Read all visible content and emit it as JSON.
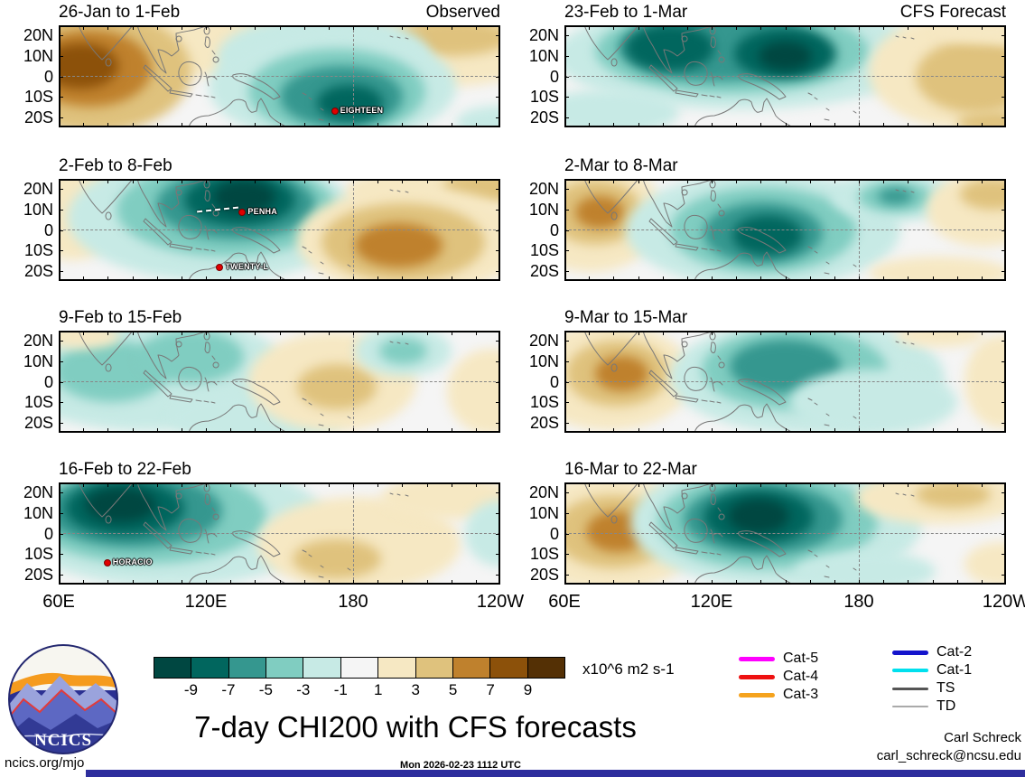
{
  "figure": {
    "title": "7-day CHI200 with CFS forecasts"
  },
  "footer": {
    "site": "ncics.org/mjo",
    "timestamp": "Mon 2026-02-23 1112 UTC",
    "credit_name": "Carl Schreck",
    "credit_email": "carl_schreck@ncsu.edu"
  },
  "logo": {
    "text": "NCICS"
  },
  "axes": {
    "lat_tick_labels": [
      "20N",
      "10N",
      "0",
      "10S",
      "20S"
    ],
    "lon_tick_labels": [
      "60E",
      "120E",
      "180",
      "120W"
    ]
  },
  "colorbar": {
    "units": "x10^6 m2 s-1",
    "tick_labels": [
      "-9",
      "-7",
      "-5",
      "-3",
      "-1",
      "1",
      "3",
      "5",
      "7",
      "9"
    ],
    "colors": [
      "#004741",
      "#01665e",
      "#35978f",
      "#80cdc1",
      "#c7eae5",
      "#f5f5f5",
      "#f6e8c3",
      "#dfc27d",
      "#bf812d",
      "#8c510a",
      "#543005"
    ]
  },
  "storm_legend": {
    "column1": [
      {
        "label": "Cat-5",
        "color": "#ff00ff",
        "thickness": 5
      },
      {
        "label": "Cat-4",
        "color": "#ee1111",
        "thickness": 5
      },
      {
        "label": "Cat-3",
        "color": "#f5a31e",
        "thickness": 5
      }
    ],
    "column2": [
      {
        "label": "Cat-2",
        "color": "#1414cc",
        "thickness": 5
      },
      {
        "label": "Cat-1",
        "color": "#00e0ee",
        "thickness": 4
      },
      {
        "label": "TS",
        "color": "#555555",
        "thickness": 3
      },
      {
        "label": "TD",
        "color": "#aaaaaa",
        "thickness": 2
      }
    ]
  },
  "chart_data": {
    "type": "heatmap",
    "subtype": "filled_contour_map_panels",
    "variable": "7-day CHI200 (200 hPa velocity potential) anomaly",
    "units": "x10^6 m2 s-1",
    "contour_levels": [
      -9,
      -7,
      -5,
      -3,
      -1,
      1,
      3,
      5,
      7,
      9
    ],
    "lon_range_deg_east": [
      60,
      240
    ],
    "lat_range_deg_north": [
      -25,
      25
    ],
    "grid_lines": {
      "lat": [
        0
      ],
      "lon": [
        180
      ]
    },
    "panels": [
      {
        "title": "26-Jan to 1-Feb",
        "corner_label": "Observed",
        "column": "observed",
        "row": 0,
        "anomalies": [
          {
            "x": 0.3,
            "y": 0.15,
            "rx": 0.28,
            "ry": 0.35,
            "value": 2
          },
          {
            "x": 0.08,
            "y": 0.45,
            "rx": 0.22,
            "ry": 0.6,
            "value": 4
          },
          {
            "x": 0.07,
            "y": 0.42,
            "rx": 0.14,
            "ry": 0.38,
            "value": 6
          },
          {
            "x": 0.05,
            "y": 0.4,
            "rx": 0.085,
            "ry": 0.22,
            "value": 8
          },
          {
            "x": 0.88,
            "y": 0.22,
            "rx": 0.22,
            "ry": 0.38,
            "value": 2
          },
          {
            "x": 0.89,
            "y": 0.12,
            "rx": 0.13,
            "ry": 0.18,
            "value": 4
          },
          {
            "x": 0.6,
            "y": 0.3,
            "rx": 0.24,
            "ry": 0.4,
            "value": -2
          },
          {
            "x": 0.62,
            "y": 0.6,
            "rx": 0.28,
            "ry": 0.55,
            "value": -2
          },
          {
            "x": 0.63,
            "y": 0.65,
            "rx": 0.2,
            "ry": 0.42,
            "value": -4
          },
          {
            "x": 0.64,
            "y": 0.7,
            "rx": 0.14,
            "ry": 0.3,
            "value": -6
          },
          {
            "x": 0.66,
            "y": 0.76,
            "rx": 0.075,
            "ry": 0.18,
            "value": -8
          },
          {
            "x": 1.0,
            "y": 0.95,
            "rx": 0.1,
            "ry": 0.16,
            "value": -2
          }
        ],
        "storms": [
          {
            "name": "EIGHTEEN",
            "x": 0.625,
            "y": 0.84
          }
        ]
      },
      {
        "title": "2-Feb to 8-Feb",
        "column": "observed",
        "row": 1,
        "anomalies": [
          {
            "x": 0.03,
            "y": 0.3,
            "rx": 0.12,
            "ry": 0.5,
            "value": 2
          },
          {
            "x": 0.35,
            "y": 0.38,
            "rx": 0.33,
            "ry": 0.62,
            "value": -2
          },
          {
            "x": 0.38,
            "y": 0.3,
            "rx": 0.25,
            "ry": 0.46,
            "value": -4
          },
          {
            "x": 0.4,
            "y": 0.25,
            "rx": 0.18,
            "ry": 0.34,
            "value": -6
          },
          {
            "x": 0.41,
            "y": 0.21,
            "rx": 0.125,
            "ry": 0.25,
            "value": -8
          },
          {
            "x": 0.42,
            "y": 0.18,
            "rx": 0.07,
            "ry": 0.16,
            "value": -10
          },
          {
            "x": 0.85,
            "y": 0.12,
            "rx": 0.2,
            "ry": 0.25,
            "value": 2
          },
          {
            "x": 0.97,
            "y": 0.08,
            "rx": 0.1,
            "ry": 0.15,
            "value": 4
          },
          {
            "x": 0.8,
            "y": 0.6,
            "rx": 0.26,
            "ry": 0.52,
            "value": 2
          },
          {
            "x": 0.78,
            "y": 0.62,
            "rx": 0.185,
            "ry": 0.38,
            "value": 4
          },
          {
            "x": 0.77,
            "y": 0.65,
            "rx": 0.1,
            "ry": 0.22,
            "value": 6
          }
        ],
        "storms": [
          {
            "name": "PENHA",
            "x": 0.416,
            "y": 0.33,
            "track": true
          },
          {
            "name": "TWENTY-L",
            "x": 0.365,
            "y": 0.87
          }
        ]
      },
      {
        "title": "9-Feb to 15-Feb",
        "column": "observed",
        "row": 2,
        "anomalies": [
          {
            "x": 0.2,
            "y": 0.4,
            "rx": 0.32,
            "ry": 0.58,
            "value": -2
          },
          {
            "x": 0.12,
            "y": 0.4,
            "rx": 0.13,
            "ry": 0.3,
            "value": -4
          },
          {
            "x": 0.3,
            "y": 0.25,
            "rx": 0.12,
            "ry": 0.26,
            "value": -4
          },
          {
            "x": 0.45,
            "y": 0.85,
            "rx": 0.2,
            "ry": 0.26,
            "value": -2
          },
          {
            "x": 0.62,
            "y": 0.5,
            "rx": 0.19,
            "ry": 0.48,
            "value": 2
          },
          {
            "x": 0.63,
            "y": 0.55,
            "rx": 0.09,
            "ry": 0.22,
            "value": 4
          },
          {
            "x": 0.78,
            "y": 0.2,
            "rx": 0.11,
            "ry": 0.24,
            "value": -2
          },
          {
            "x": 0.78,
            "y": 0.2,
            "rx": 0.055,
            "ry": 0.13,
            "value": -4
          },
          {
            "x": 0.98,
            "y": 0.6,
            "rx": 0.1,
            "ry": 0.42,
            "value": 2
          },
          {
            "x": 0.05,
            "y": 0.06,
            "rx": 0.09,
            "ry": 0.12,
            "value": 2
          }
        ],
        "storms": []
      },
      {
        "title": "16-Feb to 22-Feb",
        "column": "observed",
        "row": 3,
        "anomalies": [
          {
            "x": 0.25,
            "y": 0.4,
            "rx": 0.36,
            "ry": 0.62,
            "value": -2
          },
          {
            "x": 0.2,
            "y": 0.33,
            "rx": 0.27,
            "ry": 0.47,
            "value": -4
          },
          {
            "x": 0.17,
            "y": 0.28,
            "rx": 0.2,
            "ry": 0.36,
            "value": -6
          },
          {
            "x": 0.15,
            "y": 0.25,
            "rx": 0.135,
            "ry": 0.27,
            "value": -8
          },
          {
            "x": 0.14,
            "y": 0.22,
            "rx": 0.08,
            "ry": 0.17,
            "value": -10
          },
          {
            "x": 0.68,
            "y": 0.6,
            "rx": 0.23,
            "ry": 0.46,
            "value": 2
          },
          {
            "x": 0.63,
            "y": 0.75,
            "rx": 0.1,
            "ry": 0.19,
            "value": 4
          },
          {
            "x": 0.88,
            "y": 0.15,
            "rx": 0.15,
            "ry": 0.21,
            "value": 2
          },
          {
            "x": 1.0,
            "y": 0.5,
            "rx": 0.08,
            "ry": 0.32,
            "value": -2
          }
        ],
        "storms": [
          {
            "name": "HORACIO",
            "x": 0.11,
            "y": 0.79
          }
        ]
      },
      {
        "title": "23-Feb to 1-Mar",
        "corner_label": "CFS Forecast",
        "column": "forecast",
        "row": 0,
        "anomalies": [
          {
            "x": 0.4,
            "y": 0.3,
            "rx": 0.42,
            "ry": 0.52,
            "value": -2
          },
          {
            "x": 0.38,
            "y": 0.25,
            "rx": 0.31,
            "ry": 0.42,
            "value": -4
          },
          {
            "x": 0.35,
            "y": 0.22,
            "rx": 0.23,
            "ry": 0.33,
            "value": -6
          },
          {
            "x": 0.24,
            "y": 0.22,
            "rx": 0.1,
            "ry": 0.23,
            "value": -8
          },
          {
            "x": 0.5,
            "y": 0.28,
            "rx": 0.115,
            "ry": 0.25,
            "value": -8
          },
          {
            "x": 0.5,
            "y": 0.3,
            "rx": 0.06,
            "ry": 0.14,
            "value": -10
          },
          {
            "x": 0.9,
            "y": 0.45,
            "rx": 0.21,
            "ry": 0.56,
            "value": 2
          },
          {
            "x": 0.93,
            "y": 0.5,
            "rx": 0.135,
            "ry": 0.36,
            "value": 4
          },
          {
            "x": 0.96,
            "y": 0.05,
            "rx": 0.12,
            "ry": 0.13,
            "value": 2
          },
          {
            "x": 0.1,
            "y": 0.85,
            "rx": 0.16,
            "ry": 0.22,
            "value": -2
          },
          {
            "x": 0.98,
            "y": 0.95,
            "rx": 0.09,
            "ry": 0.11,
            "value": 4
          }
        ],
        "storms": []
      },
      {
        "title": "2-Mar to 8-Mar",
        "column": "forecast",
        "row": 1,
        "anomalies": [
          {
            "x": 0.06,
            "y": 0.35,
            "rx": 0.16,
            "ry": 0.56,
            "value": 2
          },
          {
            "x": 0.07,
            "y": 0.33,
            "rx": 0.105,
            "ry": 0.32,
            "value": 4
          },
          {
            "x": 0.08,
            "y": 0.33,
            "rx": 0.055,
            "ry": 0.16,
            "value": 6
          },
          {
            "x": 0.45,
            "y": 0.5,
            "rx": 0.31,
            "ry": 0.56,
            "value": -2
          },
          {
            "x": 0.45,
            "y": 0.5,
            "rx": 0.21,
            "ry": 0.42,
            "value": -4
          },
          {
            "x": 0.45,
            "y": 0.53,
            "rx": 0.135,
            "ry": 0.3,
            "value": -6
          },
          {
            "x": 0.46,
            "y": 0.55,
            "rx": 0.08,
            "ry": 0.2,
            "value": -8
          },
          {
            "x": 0.75,
            "y": 0.18,
            "rx": 0.145,
            "ry": 0.24,
            "value": -2
          },
          {
            "x": 0.75,
            "y": 0.18,
            "rx": 0.085,
            "ry": 0.15,
            "value": -4
          },
          {
            "x": 0.75,
            "y": 0.17,
            "rx": 0.04,
            "ry": 0.08,
            "value": -6
          },
          {
            "x": 0.95,
            "y": 0.3,
            "rx": 0.13,
            "ry": 0.36,
            "value": 2
          },
          {
            "x": 0.97,
            "y": 0.15,
            "rx": 0.075,
            "ry": 0.15,
            "value": 4
          },
          {
            "x": 0.85,
            "y": 0.92,
            "rx": 0.16,
            "ry": 0.16,
            "value": 2
          }
        ],
        "storms": []
      },
      {
        "title": "9-Mar to 15-Mar",
        "column": "forecast",
        "row": 2,
        "anomalies": [
          {
            "x": 0.1,
            "y": 0.45,
            "rx": 0.19,
            "ry": 0.52,
            "value": 2
          },
          {
            "x": 0.12,
            "y": 0.42,
            "rx": 0.115,
            "ry": 0.32,
            "value": 4
          },
          {
            "x": 0.13,
            "y": 0.42,
            "rx": 0.06,
            "ry": 0.17,
            "value": 6
          },
          {
            "x": 0.55,
            "y": 0.45,
            "rx": 0.31,
            "ry": 0.56,
            "value": -2
          },
          {
            "x": 0.52,
            "y": 0.38,
            "rx": 0.21,
            "ry": 0.4,
            "value": -4
          },
          {
            "x": 0.5,
            "y": 0.35,
            "rx": 0.125,
            "ry": 0.26,
            "value": -6
          },
          {
            "x": 0.7,
            "y": 0.7,
            "rx": 0.19,
            "ry": 0.32,
            "value": -2
          },
          {
            "x": 0.99,
            "y": 0.5,
            "rx": 0.085,
            "ry": 0.46,
            "value": 2
          },
          {
            "x": 0.85,
            "y": 0.05,
            "rx": 0.1,
            "ry": 0.11,
            "value": 2
          }
        ],
        "storms": []
      },
      {
        "title": "16-Mar to 22-Mar",
        "column": "forecast",
        "row": 3,
        "anomalies": [
          {
            "x": 0.1,
            "y": 0.5,
            "rx": 0.21,
            "ry": 0.56,
            "value": 2
          },
          {
            "x": 0.11,
            "y": 0.48,
            "rx": 0.135,
            "ry": 0.36,
            "value": 4
          },
          {
            "x": 0.12,
            "y": 0.48,
            "rx": 0.07,
            "ry": 0.2,
            "value": 6
          },
          {
            "x": 0.48,
            "y": 0.4,
            "rx": 0.33,
            "ry": 0.62,
            "value": -2
          },
          {
            "x": 0.46,
            "y": 0.38,
            "rx": 0.25,
            "ry": 0.47,
            "value": -4
          },
          {
            "x": 0.45,
            "y": 0.36,
            "rx": 0.18,
            "ry": 0.35,
            "value": -6
          },
          {
            "x": 0.44,
            "y": 0.34,
            "rx": 0.125,
            "ry": 0.27,
            "value": -8
          },
          {
            "x": 0.44,
            "y": 0.33,
            "rx": 0.07,
            "ry": 0.17,
            "value": -10
          },
          {
            "x": 0.85,
            "y": 0.15,
            "rx": 0.19,
            "ry": 0.26,
            "value": 2
          },
          {
            "x": 0.88,
            "y": 0.12,
            "rx": 0.085,
            "ry": 0.13,
            "value": 4
          },
          {
            "x": 0.99,
            "y": 0.8,
            "rx": 0.085,
            "ry": 0.22,
            "value": 2
          },
          {
            "x": 0.68,
            "y": 0.87,
            "rx": 0.16,
            "ry": 0.2,
            "value": -2
          }
        ],
        "storms": []
      }
    ]
  }
}
